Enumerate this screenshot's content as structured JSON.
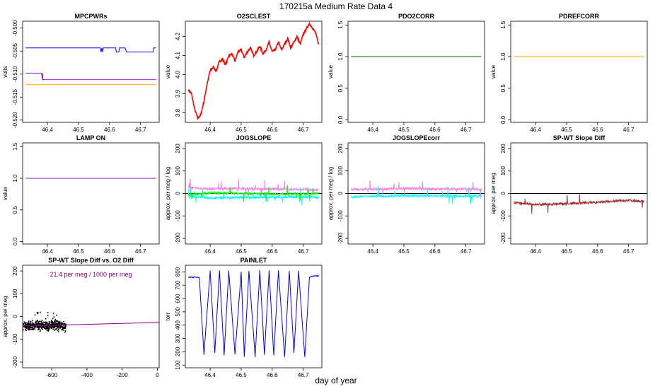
{
  "page": {
    "title": "170215a   Medium Rate Data 4",
    "xlabel": "day of year"
  },
  "colors": {
    "blue": "#0000ff",
    "purple": "#a020f0",
    "darkmagenta": "#8b008b",
    "orange": "#ffa500",
    "red": "#ff0000",
    "green": "#00ff00",
    "cyan": "#00ffff",
    "violet": "#ee82ee",
    "darkgreen": "#006400",
    "brown": "#a52a2a",
    "black": "#000000"
  },
  "chart_data": [
    {
      "id": "mpcpwrs",
      "type": "line",
      "title": "MPCPWRs",
      "ylabel": "volts",
      "xlim": [
        46.32,
        46.76
      ],
      "ylim": [
        -0.5205,
        -0.4985
      ],
      "xticks": [
        46.4,
        46.5,
        46.6,
        46.7
      ],
      "yticks": [
        -0.52,
        -0.515,
        -0.51,
        -0.505,
        -0.5
      ],
      "series": [
        {
          "color": "#0000ff",
          "x": [
            46.33,
            46.57,
            46.573,
            46.575,
            46.578,
            46.58,
            46.62,
            46.622,
            46.63,
            46.632,
            46.65,
            46.655,
            46.66,
            46.74,
            46.742,
            46.75
          ],
          "y": [
            -0.5043,
            -0.5043,
            -0.5052,
            -0.5043,
            -0.5052,
            -0.5043,
            -0.5043,
            -0.5052,
            -0.5052,
            -0.5043,
            -0.5043,
            -0.5052,
            -0.5052,
            -0.5052,
            -0.5043,
            -0.5043
          ]
        },
        {
          "color": "#a020f0",
          "x": [
            46.33,
            46.38,
            46.385,
            46.39,
            46.75
          ],
          "y": [
            -0.5098,
            -0.5098,
            -0.5112,
            -0.5112,
            -0.5112
          ]
        },
        {
          "color": "#8b008b",
          "x": [
            46.385,
            46.385,
            46.39
          ],
          "y": [
            -0.5098,
            -0.5112,
            -0.5112
          ]
        },
        {
          "color": "#ffa500",
          "x": [
            46.33,
            46.75
          ],
          "y": [
            -0.5123,
            -0.5123
          ]
        }
      ]
    },
    {
      "id": "o2sclest",
      "type": "line",
      "title": "O2SCLEST",
      "ylabel": "value",
      "xlim": [
        46.32,
        46.76
      ],
      "ylim": [
        3.75,
        4.28
      ],
      "xticks": [
        46.4,
        46.5,
        46.6,
        46.7
      ],
      "yticks": [
        3.8,
        3.9,
        4.0,
        4.1,
        4.2
      ],
      "series": [
        {
          "color": "#ff0000",
          "x": [
            46.33,
            46.34,
            46.35,
            46.36,
            46.37,
            46.38,
            46.39,
            46.4,
            46.41,
            46.42,
            46.43,
            46.44,
            46.45,
            46.46,
            46.47,
            46.48,
            46.49,
            46.5,
            46.51,
            46.52,
            46.53,
            46.54,
            46.55,
            46.56,
            46.57,
            46.58,
            46.59,
            46.6,
            46.61,
            46.62,
            46.63,
            46.64,
            46.65,
            46.66,
            46.67,
            46.68,
            46.69,
            46.7,
            46.71,
            46.72,
            46.73,
            46.74,
            46.75
          ],
          "y": [
            3.92,
            3.9,
            3.82,
            3.77,
            3.79,
            3.86,
            3.95,
            4.02,
            4.04,
            4.02,
            4.07,
            4.08,
            4.05,
            4.1,
            4.11,
            4.07,
            4.12,
            4.13,
            4.09,
            4.12,
            4.14,
            4.1,
            4.12,
            4.15,
            4.11,
            4.13,
            4.17,
            4.12,
            4.13,
            4.17,
            4.13,
            4.16,
            4.19,
            4.14,
            4.17,
            4.2,
            4.16,
            4.21,
            4.24,
            4.27,
            4.24,
            4.22,
            4.16
          ]
        }
      ]
    },
    {
      "id": "pdo2corr",
      "type": "line",
      "title": "PDO2CORR",
      "ylabel": "value",
      "xlim": [
        46.32,
        46.76
      ],
      "ylim": [
        -0.04,
        1.56
      ],
      "xticks": [
        46.4,
        46.5,
        46.6,
        46.7
      ],
      "yticks": [
        0.0,
        0.5,
        1.0,
        1.5
      ],
      "series": [
        {
          "color": "#006400",
          "x": [
            46.33,
            46.75
          ],
          "y": [
            1.0,
            1.0
          ]
        }
      ]
    },
    {
      "id": "pdrefcorr",
      "type": "line",
      "title": "PDREFCORR",
      "ylabel": "value",
      "xlim": [
        46.32,
        46.76
      ],
      "ylim": [
        -0.04,
        1.56
      ],
      "xticks": [
        46.4,
        46.5,
        46.6,
        46.7
      ],
      "yticks": [
        0.0,
        0.5,
        1.0,
        1.5
      ],
      "series": [
        {
          "color": "#ffa500",
          "x": [
            46.33,
            46.75
          ],
          "y": [
            1.0,
            1.0
          ]
        }
      ]
    },
    {
      "id": "lampon",
      "type": "line",
      "title": "LAMP ON",
      "ylabel": "value",
      "xlim": [
        46.32,
        46.76
      ],
      "ylim": [
        -0.04,
        1.56
      ],
      "xticks": [
        46.4,
        46.5,
        46.6,
        46.7
      ],
      "yticks": [
        0.0,
        0.5,
        1.0,
        1.5
      ],
      "series": [
        {
          "color": "#a020f0",
          "x": [
            46.33,
            46.75
          ],
          "y": [
            1.0,
            1.0
          ]
        }
      ]
    },
    {
      "id": "jogslope",
      "type": "line",
      "title": "JOGSLOPE",
      "ylabel": "approx. per meg / log",
      "xlim": [
        46.32,
        46.76
      ],
      "ylim": [
        -225,
        225
      ],
      "xticks": [
        46.4,
        46.5,
        46.6,
        46.7
      ],
      "yticks": [
        -200,
        -100,
        0,
        100,
        200
      ],
      "zeroline": true,
      "series": [
        {
          "color": "#ee82ee",
          "x": [
            46.33,
            46.4,
            46.5,
            46.6,
            46.7,
            46.75
          ],
          "y": [
            25,
            20,
            22,
            20,
            18,
            15
          ]
        },
        {
          "color": "#00ffff",
          "x": [
            46.33,
            46.4,
            46.5,
            46.6,
            46.7,
            46.75
          ],
          "y": [
            -12,
            -20,
            -18,
            -17,
            -15,
            -18
          ]
        },
        {
          "color": "#00ff00",
          "x": [
            46.33,
            46.4,
            46.5,
            46.6,
            46.7,
            46.75
          ],
          "y": [
            -5,
            2,
            0,
            -2,
            -3,
            0
          ]
        }
      ]
    },
    {
      "id": "jogslopecorr",
      "type": "line",
      "title": "JOGSLOPEcorr",
      "ylabel": "approx. per meg / log",
      "xlim": [
        46.32,
        46.76
      ],
      "ylim": [
        -225,
        225
      ],
      "xticks": [
        46.4,
        46.5,
        46.6,
        46.7
      ],
      "yticks": [
        -200,
        -100,
        0,
        100,
        200
      ],
      "zeroline": true,
      "series": [
        {
          "color": "#ee82ee",
          "x": [
            46.33,
            46.4,
            46.5,
            46.6,
            46.7,
            46.75
          ],
          "y": [
            18,
            20,
            22,
            20,
            20,
            18
          ]
        },
        {
          "color": "#00ffff",
          "x": [
            46.33,
            46.4,
            46.5,
            46.6,
            46.7,
            46.75
          ],
          "y": [
            -15,
            -12,
            -10,
            -10,
            -12,
            -10
          ]
        }
      ]
    },
    {
      "id": "spwtslopediff",
      "type": "line",
      "title": "SP-WT Slope Diff",
      "ylabel": "approx. per meg",
      "xlim": [
        46.32,
        46.76
      ],
      "ylim": [
        -225,
        225
      ],
      "xticks": [
        46.4,
        46.5,
        46.6,
        46.7
      ],
      "yticks": [
        -200,
        -100,
        0,
        100,
        200
      ],
      "zeroline": true,
      "series": [
        {
          "color": "#a52a2a",
          "x": [
            46.33,
            46.4,
            46.5,
            46.6,
            46.7,
            46.75
          ],
          "y": [
            -40,
            -50,
            -45,
            -40,
            -30,
            -35
          ]
        }
      ]
    },
    {
      "id": "spwtvso2",
      "type": "scatter",
      "title": "SP-WT Slope Diff vs. O2 Diff",
      "ylabel": "approx. per meg",
      "xlim": [
        -765,
        10
      ],
      "ylim": [
        -225,
        225
      ],
      "xticks": [
        -600,
        -400,
        -200,
        0
      ],
      "yticks": [
        -200,
        -100,
        0,
        100,
        200
      ],
      "annotation": "21.4 per meg / 1000 per meg",
      "fit": {
        "color": "#8b008b",
        "x": [
          -765,
          10
        ],
        "y": [
          -42,
          -26
        ]
      },
      "cluster": {
        "color": "#000000",
        "x_range": [
          -765,
          -520
        ],
        "y_center": -40,
        "y_spread": 15
      }
    },
    {
      "id": "painlet",
      "type": "line",
      "title": "PAINLET",
      "ylabel": "torr",
      "xlim": [
        46.32,
        46.76
      ],
      "ylim": [
        80,
        850
      ],
      "xticks": [
        46.4,
        46.5,
        46.6,
        46.7
      ],
      "yticks": [
        100,
        200,
        300,
        400,
        500,
        600,
        700,
        800
      ],
      "series": [
        {
          "color": "#0000ff",
          "x": [
            46.33,
            46.365,
            46.38,
            46.4,
            46.415,
            46.43,
            46.445,
            46.46,
            46.48,
            46.5,
            46.51,
            46.525,
            46.545,
            46.56,
            46.575,
            46.59,
            46.605,
            46.62,
            46.64,
            46.655,
            46.67,
            46.685,
            46.705,
            46.72,
            46.735,
            46.75
          ],
          "y": [
            760,
            760,
            180,
            810,
            190,
            810,
            175,
            810,
            180,
            800,
            165,
            805,
            160,
            810,
            180,
            810,
            170,
            810,
            160,
            810,
            190,
            810,
            160,
            760,
            770,
            770
          ]
        }
      ]
    }
  ]
}
